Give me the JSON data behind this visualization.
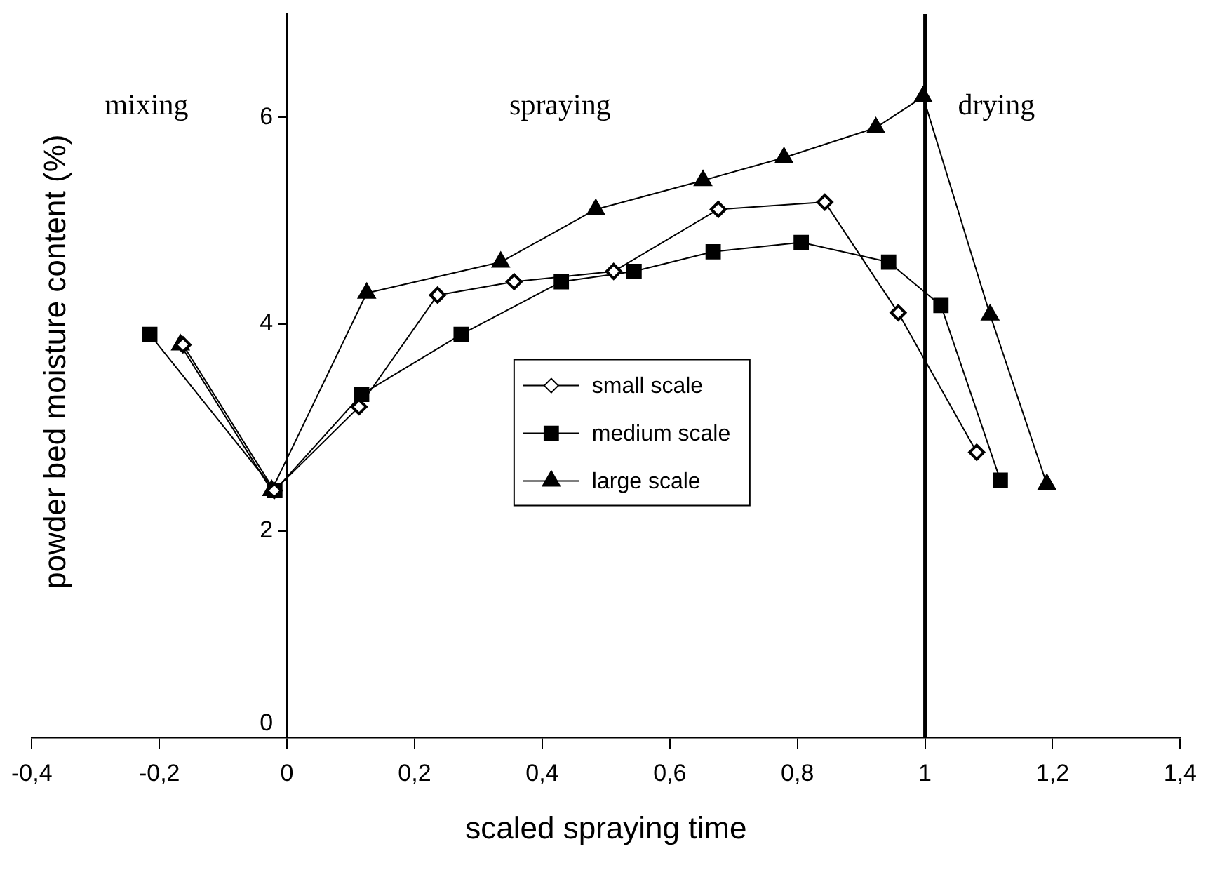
{
  "chart_data": {
    "type": "line",
    "xlabel": "scaled spraying time",
    "ylabel": "powder bed moisture content (%)",
    "xlim": [
      -0.4,
      1.4
    ],
    "xticks": [
      {
        "value": -0.4,
        "label": "-0,4"
      },
      {
        "value": -0.2,
        "label": "-0,2"
      },
      0,
      {
        "value": 0.2,
        "label": "0,2"
      },
      {
        "value": 0.4,
        "label": "0,4"
      },
      {
        "value": 0.6,
        "label": "0,6"
      },
      {
        "value": 0.8,
        "label": "0,8"
      },
      1,
      {
        "value": 1.2,
        "label": "1,2"
      },
      {
        "value": 1.4,
        "label": "1,4"
      }
    ],
    "ylim": [
      0,
      7
    ],
    "yticks": [
      0,
      2,
      4,
      6
    ],
    "grid": false,
    "legend": "center",
    "line_style": "solid",
    "series": [
      {
        "name": "small scale",
        "color": "#000000",
        "marker": "diamond",
        "x": [
          -0.163,
          -0.02,
          0.113,
          0.236,
          0.356,
          0.512,
          0.676,
          0.843,
          0.958,
          1.081
        ],
        "values": [
          3.8,
          2.39,
          3.2,
          4.28,
          4.41,
          4.51,
          5.11,
          5.18,
          4.11,
          2.76
        ]
      },
      {
        "name": "medium scale",
        "color": "#000000",
        "marker": "square",
        "x": [
          -0.215,
          -0.019,
          0.117,
          0.273,
          0.43,
          0.544,
          0.668,
          0.806,
          0.943,
          1.025,
          1.118
        ],
        "values": [
          3.9,
          2.39,
          3.32,
          3.9,
          4.41,
          4.51,
          4.7,
          4.79,
          4.6,
          4.18,
          2.49
        ]
      },
      {
        "name": "large scale",
        "color": "#000000",
        "marker": "triangle",
        "x": [
          -0.167,
          -0.024,
          0.125,
          0.335,
          0.484,
          0.652,
          0.779,
          0.923,
          0.997,
          1.102,
          1.191
        ],
        "values": [
          3.8,
          2.39,
          4.3,
          4.6,
          5.11,
          5.39,
          5.61,
          5.9,
          6.2,
          4.09,
          2.45
        ]
      }
    ],
    "ref_lines": [
      {
        "axis": "x",
        "value": 1,
        "color": "#000000"
      }
    ],
    "annotations": [
      "mixing",
      "spraying",
      "drying"
    ]
  }
}
